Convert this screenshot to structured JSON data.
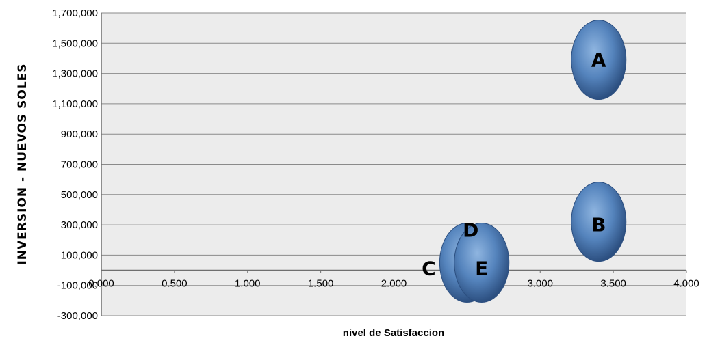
{
  "chart_data": {
    "type": "bubble",
    "title": "",
    "xlabel": "nivel de Satisfaccion",
    "ylabel": "INVERSION - NUEVOS SOLES",
    "xlim": [
      0,
      4
    ],
    "ylim": [
      -300000,
      1700000
    ],
    "x_ticks": [
      0,
      0.5,
      1,
      1.5,
      2,
      2.5,
      3,
      3.5,
      4
    ],
    "x_tick_labels": [
      "0.000",
      "0.500",
      "1.000",
      "1.500",
      "2.000",
      "2.500",
      "3.000",
      "3.500",
      "4.000"
    ],
    "y_ticks": [
      -300000,
      -100000,
      100000,
      300000,
      500000,
      700000,
      900000,
      1100000,
      1300000,
      1500000,
      1700000
    ],
    "y_tick_labels": [
      "-300,000",
      "-100,000",
      "100,000",
      "300,000",
      "500,000",
      "700,000",
      "900,000",
      "1,100,000",
      "1,300,000",
      "1,500,000",
      "1,700,000"
    ],
    "grid": true,
    "bubble_color": "#4f7fb9",
    "points": [
      {
        "label": "A",
        "x": 3.4,
        "y": 1390000
      },
      {
        "label": "B",
        "x": 3.4,
        "y": 320000
      },
      {
        "label": "C",
        "x": 2.5,
        "y": 50000
      },
      {
        "label": "D",
        "x": 2.6,
        "y": 50000
      },
      {
        "label": "E",
        "x": 2.6,
        "y": 50000
      }
    ]
  }
}
